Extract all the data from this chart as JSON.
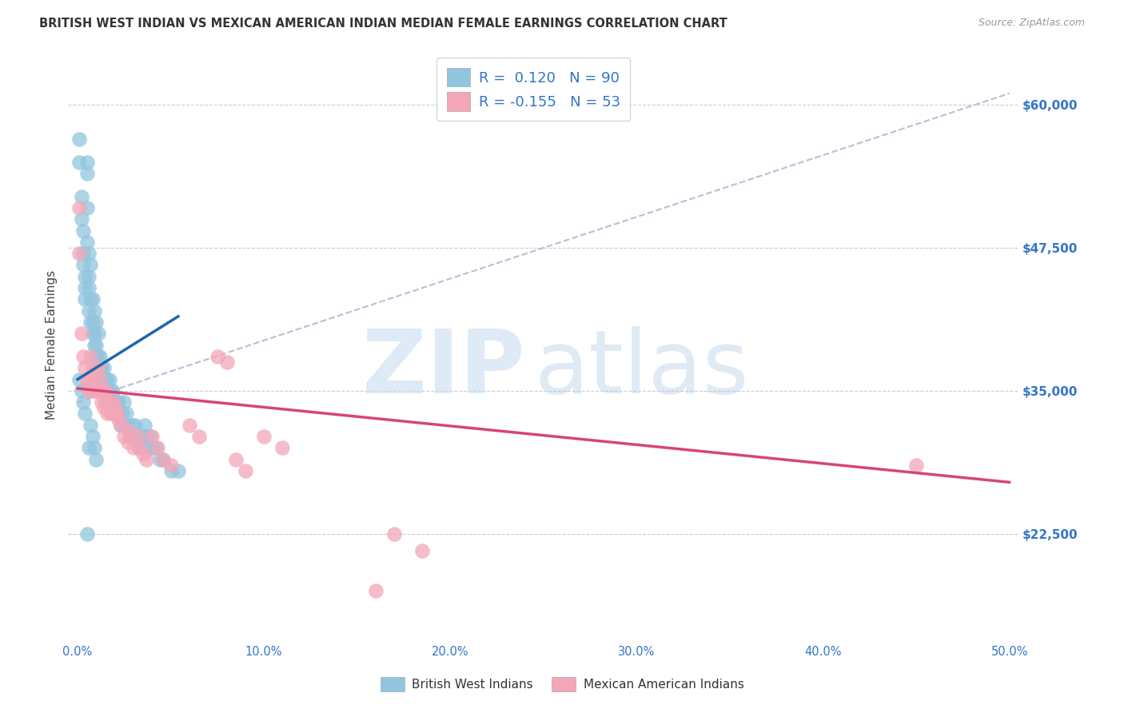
{
  "title": "BRITISH WEST INDIAN VS MEXICAN AMERICAN INDIAN MEDIAN FEMALE EARNINGS CORRELATION CHART",
  "source": "Source: ZipAtlas.com",
  "ylabel": "Median Female Earnings",
  "xlim": [
    -0.005,
    0.505
  ],
  "ylim": [
    13000,
    65000
  ],
  "xlabel_ticks": [
    "0.0%",
    "10.0%",
    "20.0%",
    "30.0%",
    "40.0%",
    "50.0%"
  ],
  "xlabel_values": [
    0.0,
    0.1,
    0.2,
    0.3,
    0.4,
    0.5
  ],
  "ylabel_ticks": [
    "$22,500",
    "$35,000",
    "$47,500",
    "$60,000"
  ],
  "ylabel_values": [
    22500,
    35000,
    47500,
    60000
  ],
  "blue_color": "#92c5de",
  "pink_color": "#f4a6b8",
  "blue_line_color": "#2166ac",
  "pink_line_color": "#d6457a",
  "dashed_line_color": "#aabbd4",
  "text_color": "#3375c8",
  "legend_r_blue": "0.120",
  "legend_n_blue": "90",
  "legend_r_pink": "-0.155",
  "legend_n_pink": "53",
  "bottom_legend_blue": "British West Indians",
  "bottom_legend_pink": "Mexican American Indians",
  "blue_line": {
    "x0": 0.0,
    "x1": 0.054,
    "y0": 36000,
    "y1": 41500
  },
  "pink_line": {
    "x0": 0.0,
    "x1": 0.5,
    "y0": 35200,
    "y1": 27000
  },
  "dashed_line": {
    "x0": 0.0,
    "x1": 0.5,
    "y0": 34000,
    "y1": 61000
  },
  "blue_x": [
    0.001,
    0.001,
    0.002,
    0.002,
    0.003,
    0.003,
    0.003,
    0.004,
    0.004,
    0.004,
    0.005,
    0.005,
    0.005,
    0.005,
    0.006,
    0.006,
    0.006,
    0.006,
    0.007,
    0.007,
    0.007,
    0.008,
    0.008,
    0.008,
    0.009,
    0.009,
    0.009,
    0.01,
    0.01,
    0.01,
    0.01,
    0.011,
    0.011,
    0.011,
    0.012,
    0.012,
    0.012,
    0.013,
    0.013,
    0.014,
    0.014,
    0.015,
    0.015,
    0.016,
    0.016,
    0.017,
    0.017,
    0.018,
    0.018,
    0.019,
    0.019,
    0.02,
    0.02,
    0.021,
    0.021,
    0.022,
    0.022,
    0.023,
    0.024,
    0.025,
    0.025,
    0.026,
    0.027,
    0.028,
    0.029,
    0.03,
    0.031,
    0.032,
    0.033,
    0.035,
    0.036,
    0.037,
    0.038,
    0.039,
    0.04,
    0.042,
    0.044,
    0.046,
    0.05,
    0.054,
    0.001,
    0.002,
    0.003,
    0.004,
    0.005,
    0.006,
    0.007,
    0.008,
    0.009,
    0.01
  ],
  "blue_y": [
    57000,
    55000,
    52000,
    50000,
    49000,
    47000,
    46000,
    45000,
    44000,
    43000,
    55000,
    54000,
    51000,
    48000,
    47000,
    45000,
    44000,
    42000,
    46000,
    43000,
    41000,
    43000,
    41000,
    40000,
    42000,
    40000,
    39000,
    41000,
    39000,
    38000,
    37000,
    40000,
    38000,
    37000,
    38000,
    37000,
    36000,
    37000,
    36000,
    37000,
    35000,
    36000,
    35000,
    36000,
    35000,
    36000,
    34000,
    35000,
    34000,
    35000,
    33000,
    34000,
    33000,
    34000,
    33000,
    34000,
    33000,
    32000,
    33000,
    32000,
    34000,
    33000,
    32000,
    31000,
    32000,
    31000,
    32000,
    31000,
    30000,
    31000,
    32000,
    31000,
    30000,
    31000,
    30000,
    30000,
    29000,
    29000,
    28000,
    28000,
    36000,
    35000,
    34000,
    33000,
    22500,
    30000,
    32000,
    31000,
    30000,
    29000
  ],
  "pink_x": [
    0.001,
    0.001,
    0.002,
    0.003,
    0.004,
    0.005,
    0.006,
    0.007,
    0.007,
    0.008,
    0.008,
    0.009,
    0.01,
    0.011,
    0.012,
    0.012,
    0.013,
    0.013,
    0.014,
    0.015,
    0.015,
    0.016,
    0.017,
    0.018,
    0.019,
    0.02,
    0.021,
    0.022,
    0.023,
    0.025,
    0.027,
    0.028,
    0.03,
    0.032,
    0.033,
    0.035,
    0.037,
    0.04,
    0.043,
    0.046,
    0.05,
    0.06,
    0.065,
    0.075,
    0.08,
    0.085,
    0.09,
    0.1,
    0.11,
    0.16,
    0.17,
    0.185,
    0.45
  ],
  "pink_y": [
    47000,
    51000,
    40000,
    38000,
    37000,
    36000,
    35000,
    38000,
    36000,
    37000,
    35000,
    36000,
    35000,
    37000,
    36000,
    35000,
    35000,
    34000,
    33500,
    34000,
    35000,
    33000,
    34000,
    33000,
    34000,
    33500,
    33000,
    32500,
    32000,
    31000,
    30500,
    31500,
    30000,
    31000,
    30000,
    29500,
    29000,
    31000,
    30000,
    29000,
    28500,
    32000,
    31000,
    38000,
    37500,
    29000,
    28000,
    31000,
    30000,
    17500,
    22500,
    21000,
    28500
  ]
}
